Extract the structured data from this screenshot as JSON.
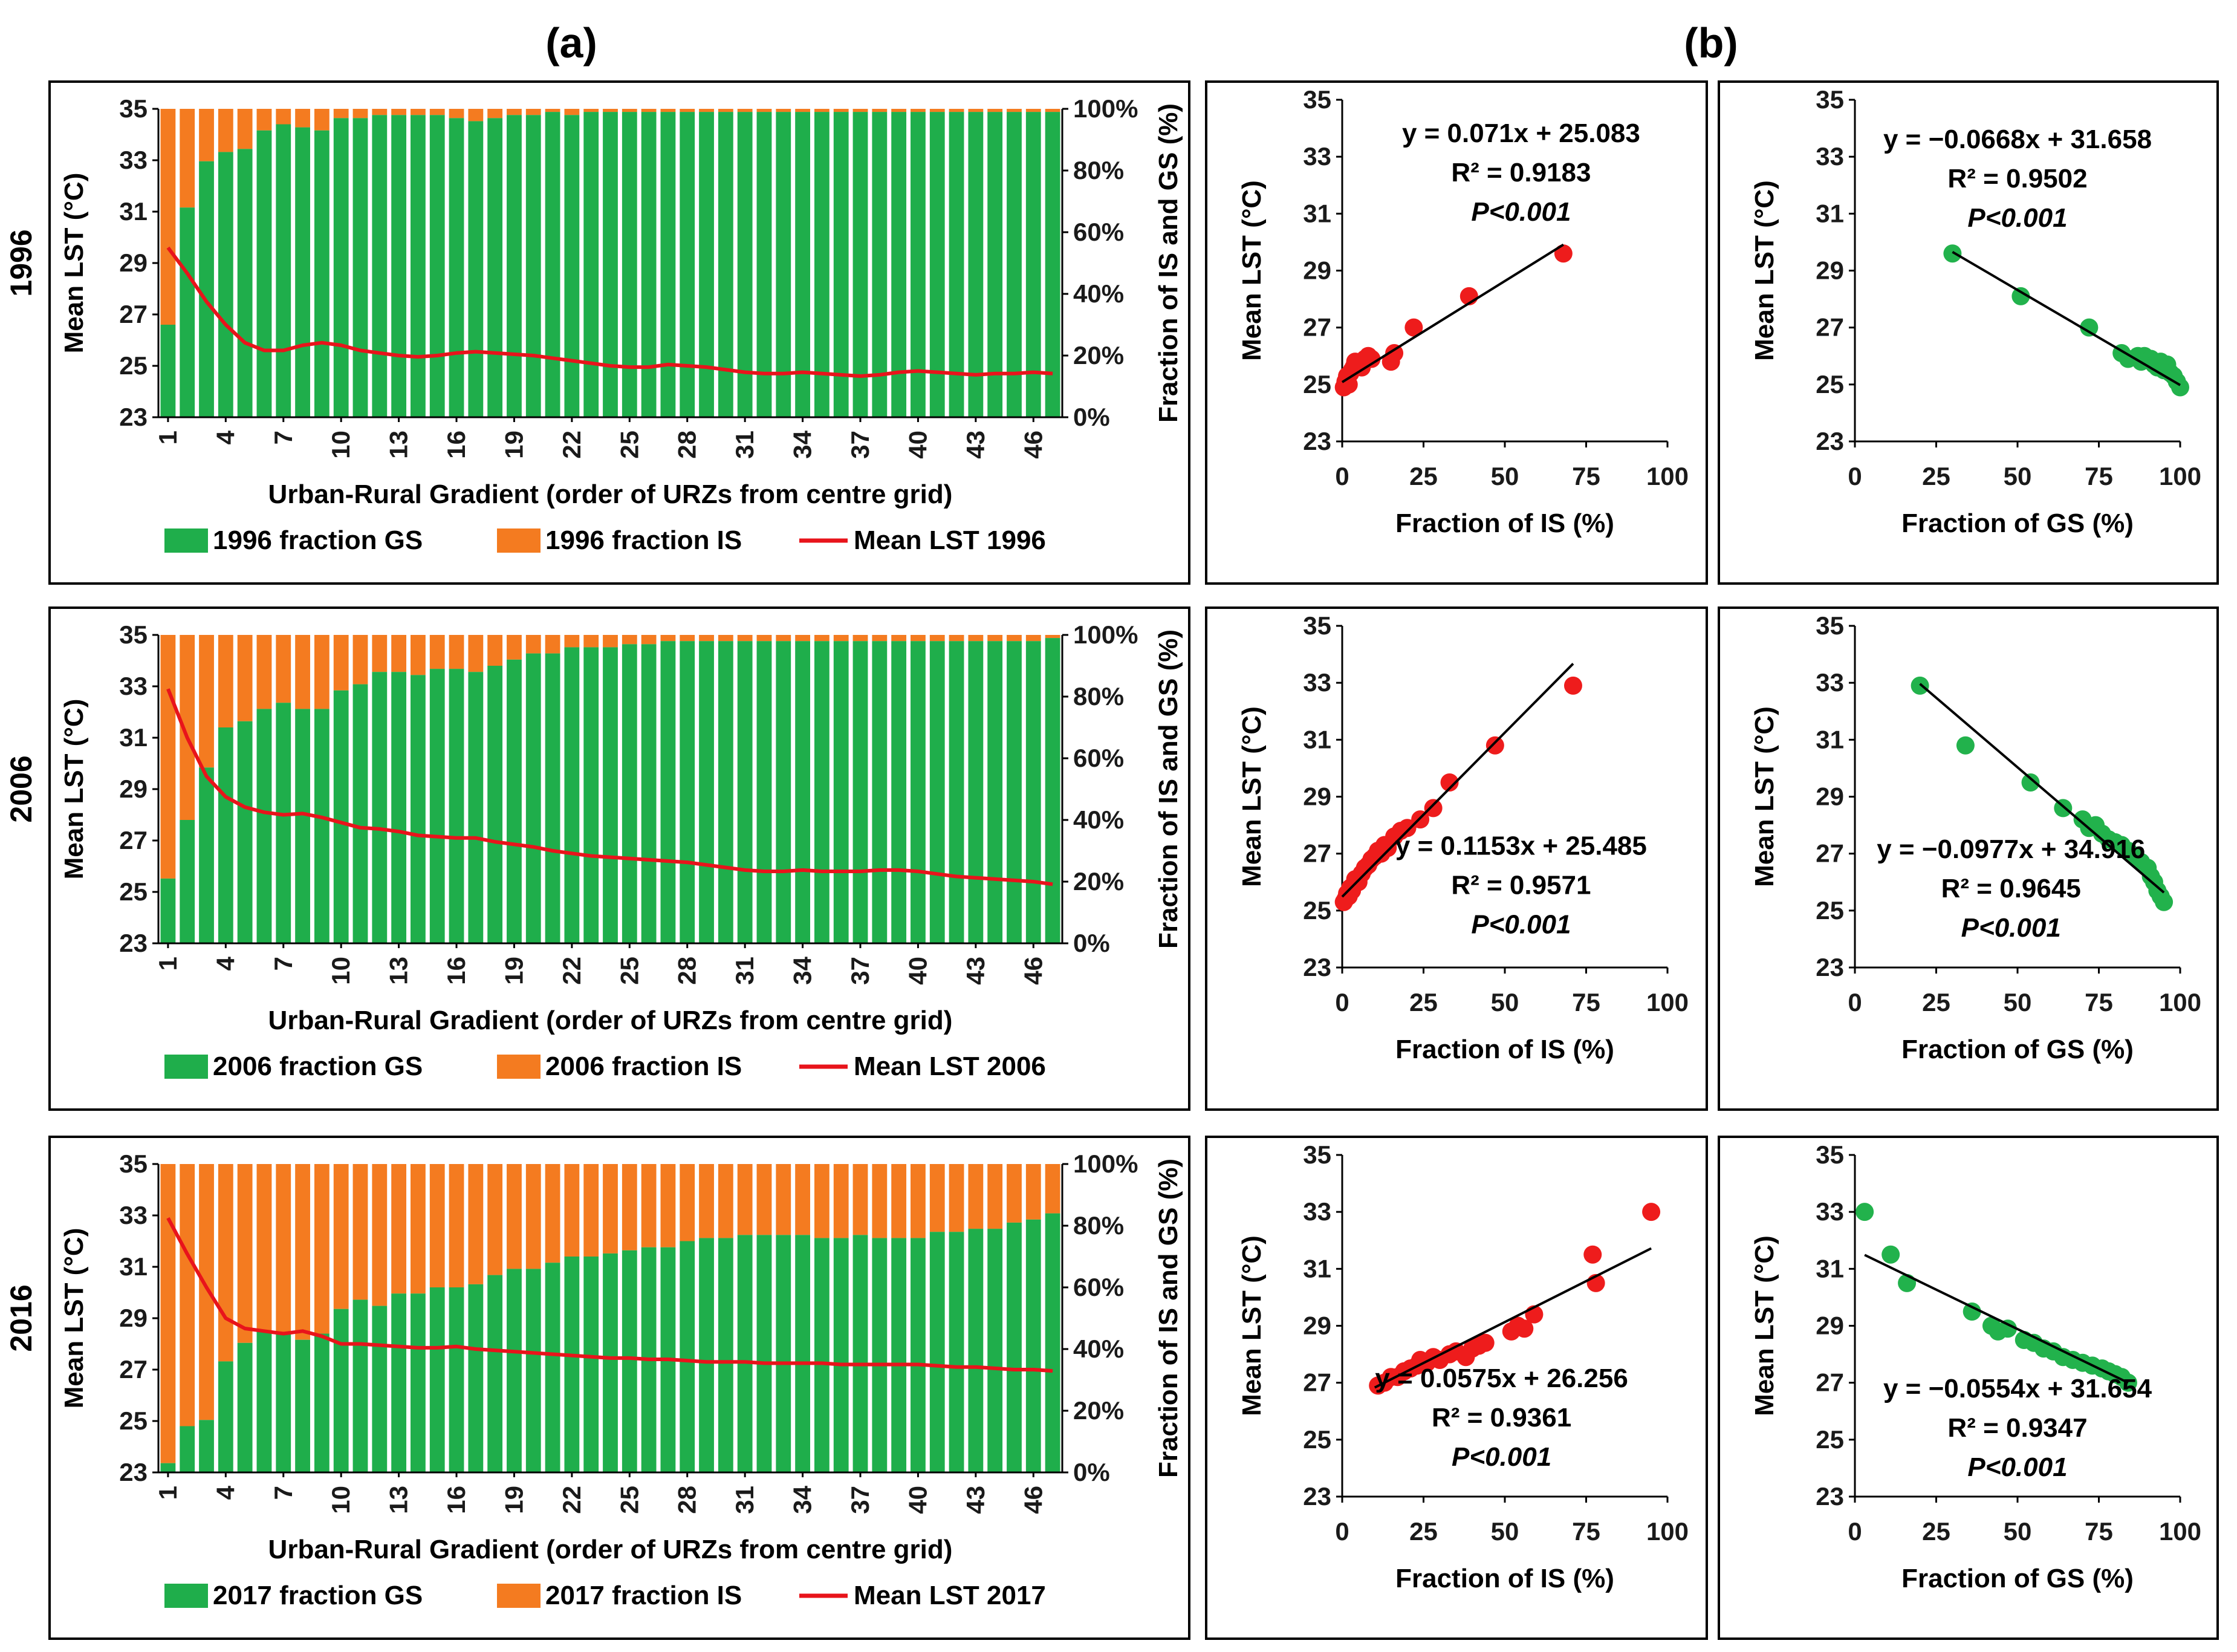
{
  "figure": {
    "panel_a_label": "(a)",
    "panel_b_label": "(b)",
    "colors": {
      "gs": "#1fae4b",
      "is": "#f47b20",
      "lst": "#e8141b",
      "scatter_is": "#ee1c1c",
      "scatter_gs": "#22b24c",
      "fit": "#000000"
    }
  },
  "chart_data": [
    {
      "id": "bar-1996",
      "type": "bar",
      "stacked": true,
      "row_label": "1996",
      "categories": [
        1,
        2,
        3,
        4,
        5,
        6,
        7,
        8,
        9,
        10,
        11,
        12,
        13,
        14,
        15,
        16,
        17,
        18,
        19,
        20,
        21,
        22,
        23,
        24,
        25,
        26,
        27,
        28,
        29,
        30,
        31,
        32,
        33,
        34,
        35,
        36,
        37,
        38,
        39,
        40,
        41,
        42,
        43,
        44,
        45,
        46,
        47
      ],
      "tick_labels": [
        "1",
        "4",
        "7",
        "10",
        "13",
        "16",
        "19",
        "22",
        "25",
        "28",
        "31",
        "34",
        "37",
        "40",
        "43",
        "46"
      ],
      "xlabel": "Urban-Rural Gradient (order of URZs from centre grid)",
      "ylabel": "Mean LST (°C)",
      "ylim": [
        23,
        35
      ],
      "yticks": [
        "23",
        "25",
        "27",
        "29",
        "31",
        "33",
        "35"
      ],
      "y2label": "Fraction of IS and GS (%)",
      "y2lim": [
        0,
        100
      ],
      "y2ticks": [
        "0%",
        "20%",
        "40%",
        "60%",
        "80%",
        "100%"
      ],
      "legend": [
        "1996 fraction GS",
        "1996 fraction IS",
        "Mean LST 1996"
      ],
      "series": [
        {
          "name": "1996 fraction GS",
          "values": [
            30,
            68,
            83,
            86,
            87,
            93,
            95,
            94,
            93,
            97,
            97,
            98,
            98,
            98,
            98,
            97,
            96,
            97,
            98,
            98,
            99,
            98,
            99,
            99,
            99,
            99,
            99,
            99,
            99,
            99,
            99,
            99,
            99,
            99,
            99,
            99,
            99,
            99,
            99,
            99,
            99,
            99,
            99,
            99,
            99,
            99,
            99
          ]
        },
        {
          "name": "Mean LST 1996",
          "values": [
            29.6,
            28.6,
            27.5,
            26.6,
            25.9,
            25.6,
            25.6,
            25.8,
            25.9,
            25.8,
            25.6,
            25.5,
            25.4,
            25.35,
            25.4,
            25.5,
            25.55,
            25.5,
            25.45,
            25.4,
            25.3,
            25.2,
            25.1,
            25.0,
            24.95,
            24.95,
            25.05,
            25.0,
            24.95,
            24.85,
            24.75,
            24.7,
            24.7,
            24.75,
            24.7,
            24.65,
            24.6,
            24.65,
            24.75,
            24.8,
            24.75,
            24.7,
            24.65,
            24.7,
            24.7,
            24.75,
            24.7
          ]
        }
      ]
    },
    {
      "id": "bar-2006",
      "type": "bar",
      "stacked": true,
      "row_label": "2006",
      "categories": [
        1,
        2,
        3,
        4,
        5,
        6,
        7,
        8,
        9,
        10,
        11,
        12,
        13,
        14,
        15,
        16,
        17,
        18,
        19,
        20,
        21,
        22,
        23,
        24,
        25,
        26,
        27,
        28,
        29,
        30,
        31,
        32,
        33,
        34,
        35,
        36,
        37,
        38,
        39,
        40,
        41,
        42,
        43,
        44,
        45,
        46,
        47
      ],
      "tick_labels": [
        "1",
        "4",
        "7",
        "10",
        "13",
        "16",
        "19",
        "22",
        "25",
        "28",
        "31",
        "34",
        "37",
        "40",
        "43",
        "46"
      ],
      "xlabel": "Urban-Rural Gradient (order of URZs from centre grid)",
      "ylabel": "Mean LST (°C)",
      "ylim": [
        23,
        35
      ],
      "yticks": [
        "23",
        "25",
        "27",
        "29",
        "31",
        "33",
        "35"
      ],
      "y2label": "Fraction of IS and GS (%)",
      "y2lim": [
        0,
        100
      ],
      "y2ticks": [
        "0%",
        "20%",
        "40%",
        "60%",
        "80%",
        "100%"
      ],
      "legend": [
        "2006 fraction GS",
        "2006 fraction IS",
        "Mean LST 2006"
      ],
      "series": [
        {
          "name": "2006 fraction GS",
          "values": [
            21,
            40,
            57,
            70,
            72,
            76,
            78,
            76,
            76,
            82,
            84,
            88,
            88,
            87,
            89,
            89,
            88,
            90,
            92,
            94,
            94,
            96,
            96,
            96,
            97,
            97,
            98,
            98,
            98,
            98,
            98,
            98,
            98,
            98,
            98,
            98,
            98,
            98,
            98,
            98,
            98,
            98,
            98,
            98,
            98,
            98,
            99
          ]
        },
        {
          "name": "Mean LST 2006",
          "values": [
            32.9,
            31.0,
            29.5,
            28.7,
            28.3,
            28.1,
            28.0,
            28.05,
            27.9,
            27.7,
            27.5,
            27.45,
            27.35,
            27.2,
            27.15,
            27.1,
            27.1,
            26.95,
            26.85,
            26.75,
            26.6,
            26.5,
            26.4,
            26.35,
            26.3,
            26.25,
            26.2,
            26.15,
            26.05,
            25.95,
            25.85,
            25.8,
            25.8,
            25.85,
            25.8,
            25.8,
            25.8,
            25.85,
            25.85,
            25.8,
            25.7,
            25.6,
            25.55,
            25.5,
            25.45,
            25.4,
            25.3
          ]
        }
      ]
    },
    {
      "id": "bar-2016",
      "type": "bar",
      "stacked": true,
      "row_label": "2016",
      "categories": [
        1,
        2,
        3,
        4,
        5,
        6,
        7,
        8,
        9,
        10,
        11,
        12,
        13,
        14,
        15,
        16,
        17,
        18,
        19,
        20,
        21,
        22,
        23,
        24,
        25,
        26,
        27,
        28,
        29,
        30,
        31,
        32,
        33,
        34,
        35,
        36,
        37,
        38,
        39,
        40,
        41,
        42,
        43,
        44,
        45,
        46,
        47
      ],
      "tick_labels": [
        "1",
        "4",
        "7",
        "10",
        "13",
        "16",
        "19",
        "22",
        "25",
        "28",
        "31",
        "34",
        "37",
        "40",
        "43",
        "46"
      ],
      "xlabel": "Urban-Rural Gradient (order of URZs from centre grid)",
      "ylabel": "Mean LST (°C)",
      "ylim": [
        23,
        35
      ],
      "yticks": [
        "23",
        "25",
        "27",
        "29",
        "31",
        "33",
        "35"
      ],
      "y2label": "Fraction of IS and GS (%)",
      "y2lim": [
        0,
        100
      ],
      "y2ticks": [
        "0%",
        "20%",
        "40%",
        "60%",
        "80%",
        "100%"
      ],
      "legend": [
        "2017 fraction GS",
        "2017 fraction IS",
        "Mean LST 2017"
      ],
      "series": [
        {
          "name": "2017 fraction GS",
          "values": [
            3,
            15,
            17,
            36,
            42,
            46,
            45,
            43,
            45,
            53,
            56,
            54,
            58,
            58,
            60,
            60,
            61,
            64,
            66,
            66,
            68,
            70,
            70,
            71,
            72,
            73,
            73,
            75,
            76,
            76,
            77,
            77,
            77,
            77,
            76,
            76,
            77,
            76,
            76,
            76,
            78,
            78,
            79,
            79,
            81,
            82,
            84
          ]
        },
        {
          "name": "Mean LST 2017",
          "values": [
            32.9,
            31.5,
            30.2,
            29.0,
            28.6,
            28.5,
            28.4,
            28.5,
            28.3,
            28.0,
            28.0,
            27.95,
            27.9,
            27.85,
            27.85,
            27.9,
            27.8,
            27.75,
            27.7,
            27.65,
            27.6,
            27.55,
            27.5,
            27.45,
            27.45,
            27.4,
            27.4,
            27.35,
            27.3,
            27.3,
            27.3,
            27.25,
            27.25,
            27.25,
            27.25,
            27.2,
            27.2,
            27.2,
            27.2,
            27.2,
            27.15,
            27.1,
            27.1,
            27.05,
            27.0,
            27.0,
            26.95
          ]
        }
      ]
    },
    {
      "id": "sc-1996-is",
      "type": "scatter",
      "xlabel": "Fraction of IS (%)",
      "ylabel": "Mean LST (°C)",
      "xlim": [
        0,
        100
      ],
      "ylim": [
        23,
        35
      ],
      "xticks": [
        "0",
        "25",
        "50",
        "75",
        "100"
      ],
      "yticks": [
        "23",
        "25",
        "27",
        "29",
        "31",
        "33",
        "35"
      ],
      "x": [
        0.5,
        1,
        1.5,
        2,
        2.5,
        3,
        3.5,
        4,
        5,
        6,
        7,
        8,
        9,
        15,
        16,
        22,
        39,
        68
      ],
      "y": [
        24.9,
        25.1,
        25.3,
        25.0,
        25.4,
        25.5,
        25.6,
        25.8,
        25.7,
        25.6,
        25.9,
        26.0,
        25.9,
        25.8,
        26.1,
        27.0,
        28.1,
        29.6
      ],
      "fit": {
        "slope": 0.071,
        "intercept": 25.083,
        "x_range": [
          0,
          68
        ]
      },
      "annotations": [
        "y = 0.071x + 25.083",
        "R² = 0.9183",
        "P<0.001"
      ],
      "color": "red"
    },
    {
      "id": "sc-1996-gs",
      "type": "scatter",
      "xlabel": "Fraction of GS (%)",
      "ylabel": "Mean LST (°C)",
      "xlim": [
        0,
        100
      ],
      "ylim": [
        23,
        35
      ],
      "xticks": [
        "0",
        "25",
        "50",
        "75",
        "100"
      ],
      "yticks": [
        "23",
        "25",
        "27",
        "29",
        "31",
        "33",
        "35"
      ],
      "x": [
        30,
        51,
        72,
        82,
        84,
        87,
        88,
        89,
        91,
        92,
        93,
        94,
        95,
        96,
        97,
        98,
        99,
        100
      ],
      "y": [
        29.6,
        28.1,
        27.0,
        26.1,
        25.9,
        26.0,
        25.8,
        26.0,
        25.9,
        25.7,
        25.6,
        25.8,
        25.5,
        25.7,
        25.4,
        25.3,
        25.1,
        24.9
      ],
      "fit": {
        "slope": -0.0668,
        "intercept": 31.658,
        "x_range": [
          30,
          100
        ]
      },
      "annotations": [
        "y = −0.0668x + 31.658",
        "R² = 0.9502",
        "P<0.001"
      ],
      "color": "green"
    },
    {
      "id": "sc-2006-is",
      "type": "scatter",
      "xlabel": "Fraction of IS (%)",
      "ylabel": "Mean LST (°C)",
      "xlim": [
        0,
        100
      ],
      "ylim": [
        23,
        35
      ],
      "xticks": [
        "0",
        "25",
        "50",
        "75",
        "100"
      ],
      "yticks": [
        "23",
        "25",
        "27",
        "29",
        "31",
        "33",
        "35"
      ],
      "x": [
        0.5,
        1,
        1.5,
        2,
        2.5,
        3,
        3.5,
        4,
        5,
        6,
        7,
        8,
        9,
        10,
        11,
        12,
        13,
        14,
        16,
        18,
        20,
        24,
        28,
        33,
        47,
        71
      ],
      "y": [
        25.3,
        25.4,
        25.6,
        25.5,
        25.8,
        25.7,
        25.9,
        26.1,
        26.0,
        26.3,
        26.5,
        26.6,
        26.8,
        26.9,
        27.1,
        27.0,
        27.3,
        27.2,
        27.6,
        27.8,
        27.9,
        28.2,
        28.6,
        29.5,
        30.8,
        32.9
      ],
      "fit": {
        "slope": 0.1153,
        "intercept": 25.485,
        "x_range": [
          0,
          71
        ]
      },
      "annotations": [
        "y = 0.1153x + 25.485",
        "R² = 0.9571",
        "P<0.001"
      ],
      "color": "red"
    },
    {
      "id": "sc-2006-gs",
      "type": "scatter",
      "xlabel": "Fraction of GS (%)",
      "ylabel": "Mean LST (°C)",
      "xlim": [
        0,
        100
      ],
      "ylim": [
        23,
        35
      ],
      "xticks": [
        "0",
        "25",
        "50",
        "75",
        "100"
      ],
      "yticks": [
        "23",
        "25",
        "27",
        "29",
        "31",
        "33",
        "35"
      ],
      "x": [
        20,
        34,
        54,
        64,
        70,
        72,
        74,
        76,
        78,
        80,
        82,
        84,
        86,
        88,
        90,
        91,
        92,
        93,
        94,
        95
      ],
      "y": [
        32.9,
        30.8,
        29.5,
        28.6,
        28.2,
        27.9,
        28.0,
        27.7,
        27.5,
        27.4,
        27.3,
        27.1,
        26.9,
        26.7,
        26.5,
        26.2,
        26.0,
        25.7,
        25.5,
        25.3
      ],
      "fit": {
        "slope": -0.0977,
        "intercept": 34.916,
        "x_range": [
          20,
          95
        ]
      },
      "annotations": [
        "y = −0.0977x + 34.916",
        "R² = 0.9645",
        "P<0.001"
      ],
      "color": "green"
    },
    {
      "id": "sc-2016-is",
      "type": "scatter",
      "xlabel": "Fraction of IS (%)",
      "ylabel": "Mean LST (°C)",
      "xlim": [
        0,
        100
      ],
      "ylim": [
        23,
        35
      ],
      "xticks": [
        "0",
        "25",
        "50",
        "75",
        "100"
      ],
      "yticks": [
        "23",
        "25",
        "27",
        "29",
        "31",
        "33",
        "35"
      ],
      "x": [
        11,
        13,
        15,
        17,
        19,
        21,
        23,
        24,
        26,
        28,
        30,
        33,
        35,
        38,
        40,
        42,
        44,
        52,
        54,
        56,
        59,
        77,
        78,
        95
      ],
      "y": [
        26.9,
        27.0,
        27.2,
        27.2,
        27.4,
        27.5,
        27.6,
        27.8,
        27.7,
        27.9,
        27.8,
        28.0,
        28.1,
        27.9,
        28.2,
        28.3,
        28.4,
        28.8,
        29.0,
        28.9,
        29.4,
        31.5,
        30.5,
        33.0
      ],
      "fit": {
        "slope": 0.0575,
        "intercept": 26.256,
        "x_range": [
          10,
          95
        ]
      },
      "annotations": [
        "y = 0.0575x + 26.256",
        "R² = 0.9361",
        "P<0.001"
      ],
      "color": "red"
    },
    {
      "id": "sc-2016-gs",
      "type": "scatter",
      "xlabel": "Fraction of GS (%)",
      "ylabel": "Mean LST (°C)",
      "xlim": [
        0,
        100
      ],
      "ylim": [
        23,
        35
      ],
      "xticks": [
        "0",
        "25",
        "50",
        "75",
        "100"
      ],
      "yticks": [
        "23",
        "25",
        "27",
        "29",
        "31",
        "33",
        "35"
      ],
      "x": [
        3,
        11,
        16,
        36,
        42,
        44,
        47,
        52,
        55,
        58,
        61,
        64,
        67,
        70,
        73,
        76,
        78,
        80,
        82,
        84
      ],
      "y": [
        33.0,
        31.5,
        30.5,
        29.5,
        29.0,
        28.8,
        28.9,
        28.5,
        28.4,
        28.2,
        28.1,
        27.9,
        27.8,
        27.7,
        27.6,
        27.5,
        27.4,
        27.3,
        27.2,
        27.0
      ],
      "fit": {
        "slope": -0.0554,
        "intercept": 31.654,
        "x_range": [
          3,
          84
        ]
      },
      "annotations": [
        "y = −0.0554x + 31.654",
        "R² = 0.9347",
        "P<0.001"
      ],
      "color": "green"
    }
  ]
}
